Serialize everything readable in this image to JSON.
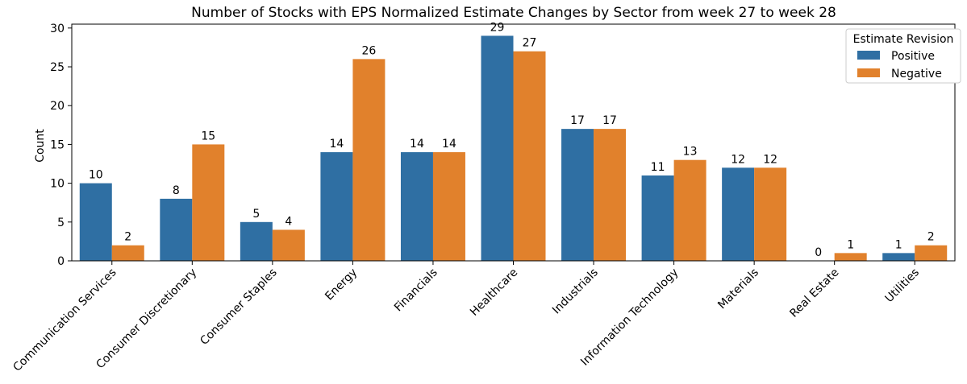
{
  "chart_data": {
    "type": "bar",
    "title": "Number of Stocks with EPS Normalized Estimate Changes by Sector from week 27 to week 28",
    "xlabel": "",
    "ylabel": "Count",
    "ylim": [
      0,
      30.5
    ],
    "yticks": [
      0,
      5,
      10,
      15,
      20,
      25,
      30
    ],
    "grid": false,
    "legend": {
      "title": "Estimate Revision",
      "placement": "top-right"
    },
    "categories": [
      "Communication Services",
      "Consumer Discretionary",
      "Consumer Staples",
      "Energy",
      "Financials",
      "Healthcare",
      "Industrials",
      "Information Technology",
      "Materials",
      "Real Estate",
      "Utilities"
    ],
    "series": [
      {
        "name": "Positive",
        "color": "#2f6fa3",
        "values": [
          10,
          8,
          5,
          14,
          14,
          29,
          17,
          11,
          12,
          0,
          1
        ]
      },
      {
        "name": "Negative",
        "color": "#e1812c",
        "values": [
          2,
          15,
          4,
          26,
          14,
          27,
          17,
          13,
          12,
          1,
          2
        ]
      }
    ]
  }
}
